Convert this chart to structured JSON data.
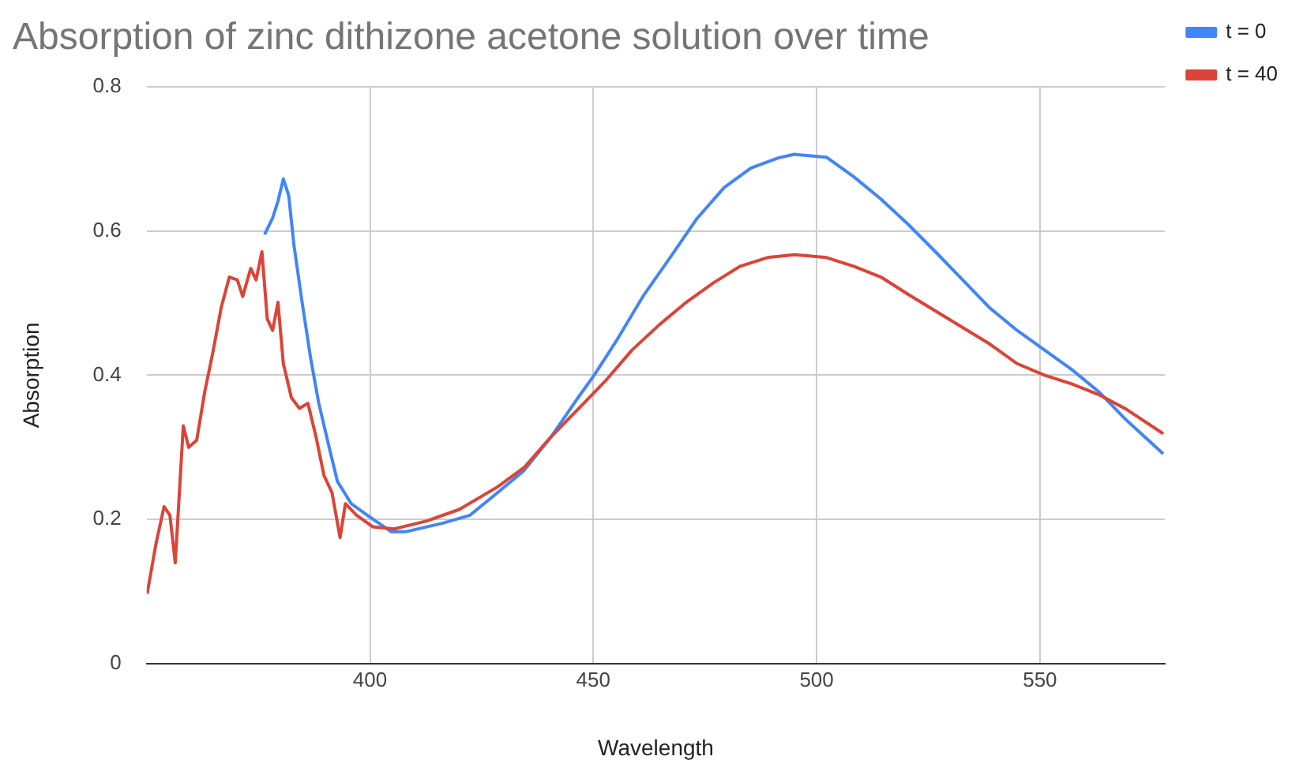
{
  "chart_data": {
    "type": "line",
    "title": "Absorption of zinc dithizone acetone solution over time",
    "xlabel": "Wavelength",
    "ylabel": "Absorption",
    "xlim": [
      350,
      578
    ],
    "xticks": [
      400,
      450,
      500,
      550
    ],
    "ylim": [
      0,
      0.8
    ],
    "yticks": [
      0,
      0.2,
      0.4,
      0.6,
      0.8
    ],
    "grid": true,
    "legend": "right",
    "marker": "none",
    "line_style": "solid",
    "series": [
      {
        "name": "t = 0",
        "color": "#4285f4",
        "x": [
          376.4,
          378.2,
          379.4,
          380.6,
          381.8,
          383,
          384.8,
          386.7,
          388.5,
          390.9,
          392.7,
          395.8,
          399.4,
          404.8,
          407.9,
          416.3,
          422.4,
          428.5,
          434.5,
          440.6,
          446.6,
          450.2,
          455.1,
          461.1,
          467.2,
          473.2,
          479.3,
          485.3,
          491.4,
          495,
          502.2,
          508.3,
          514.4,
          520.5,
          526.6,
          532.7,
          538.8,
          544.9,
          551,
          557.1,
          563.2,
          569.3,
          577.6
        ],
        "values": [
          0.595,
          0.618,
          0.641,
          0.672,
          0.649,
          0.579,
          0.501,
          0.424,
          0.362,
          0.299,
          0.253,
          0.222,
          0.206,
          0.183,
          0.183,
          0.195,
          0.206,
          0.237,
          0.268,
          0.315,
          0.369,
          0.4,
          0.447,
          0.509,
          0.563,
          0.617,
          0.66,
          0.687,
          0.701,
          0.706,
          0.702,
          0.675,
          0.644,
          0.609,
          0.571,
          0.532,
          0.493,
          0.462,
          0.435,
          0.408,
          0.377,
          0.338,
          0.291
        ]
      },
      {
        "name": "t = 40",
        "color": "#db4437",
        "x": [
          350.1,
          352.1,
          353.9,
          355.2,
          356.4,
          358.2,
          359.4,
          361.2,
          363,
          364.8,
          366.7,
          368.5,
          370.3,
          371.5,
          373.3,
          374.5,
          375.8,
          377,
          378.2,
          379.4,
          380.6,
          382.4,
          384.2,
          386.1,
          387.9,
          389.7,
          391.5,
          393.3,
          394.5,
          397,
          400.6,
          405.4,
          412.7,
          420,
          428.5,
          434.5,
          440.6,
          446.6,
          452.7,
          458.7,
          464.8,
          470.8,
          476.9,
          482.9,
          489,
          495,
          502.2,
          508.3,
          514.4,
          520.5,
          526.6,
          532.7,
          538.8,
          544.9,
          551,
          557.1,
          563.2,
          569.3,
          577.6
        ],
        "values": [
          0.097,
          0.167,
          0.218,
          0.206,
          0.14,
          0.33,
          0.3,
          0.31,
          0.377,
          0.431,
          0.494,
          0.536,
          0.532,
          0.509,
          0.548,
          0.532,
          0.571,
          0.478,
          0.462,
          0.501,
          0.416,
          0.369,
          0.354,
          0.361,
          0.315,
          0.261,
          0.237,
          0.175,
          0.222,
          0.206,
          0.19,
          0.187,
          0.198,
          0.214,
          0.245,
          0.272,
          0.315,
          0.353,
          0.392,
          0.435,
          0.47,
          0.501,
          0.528,
          0.551,
          0.563,
          0.567,
          0.563,
          0.551,
          0.536,
          0.512,
          0.489,
          0.466,
          0.443,
          0.416,
          0.4,
          0.388,
          0.373,
          0.353,
          0.319
        ]
      }
    ]
  }
}
